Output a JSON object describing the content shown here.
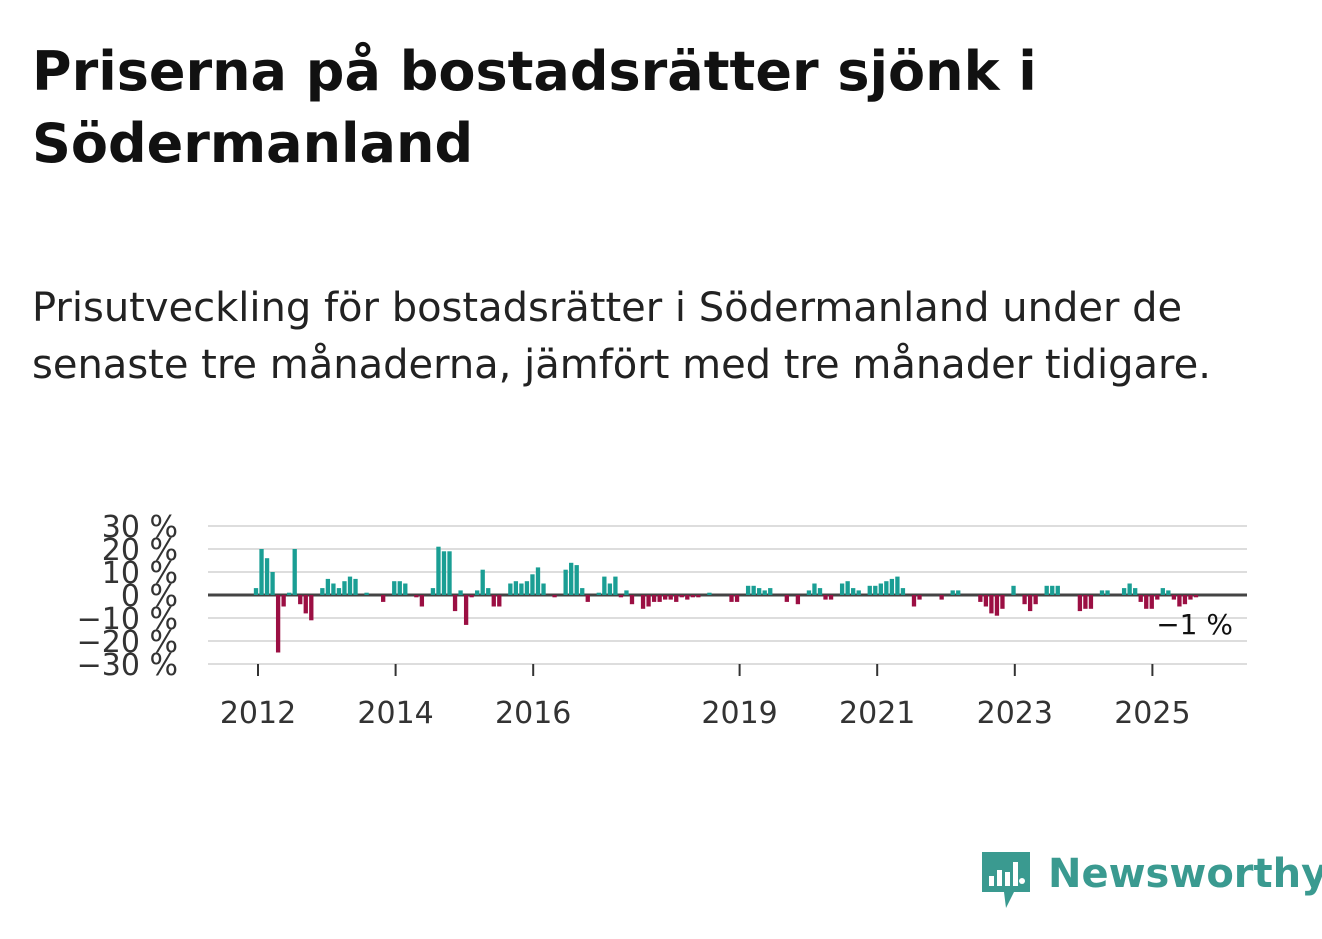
{
  "title": "Priserna på bostadsrätter sjönk i Södermanland",
  "subtitle": "Prisutveckling för bostadsrätter i Södermanland under de senaste tre månaderna, jämfört med tre månader tidigare.",
  "logo_text": "Newsworthy",
  "colors": {
    "positive": "#1a9e94",
    "negative": "#9b0f43",
    "grid": "#dddddd",
    "zero_line": "#444444"
  },
  "chart_data": {
    "type": "bar",
    "title": "",
    "xlabel": "",
    "ylabel": "",
    "ylim": [
      -30,
      30
    ],
    "y_ticks": [
      30,
      20,
      10,
      0,
      -10,
      -20,
      -30
    ],
    "y_tick_labels": [
      "30 %",
      "20 %",
      "10 %",
      "0 %",
      "−10 %",
      "−20 %",
      "−30 %"
    ],
    "x_ticks": [
      2012,
      2014,
      2016,
      2019,
      2021,
      2023,
      2025
    ],
    "x_tick_labels": [
      "2012",
      "2014",
      "2016",
      "2019",
      "2021",
      "2023",
      "2025"
    ],
    "x_start": 2011.75,
    "x_end": 2025.75,
    "last_value_label": "−1 %",
    "values": [
      3,
      20,
      16,
      10,
      -25,
      -5,
      1,
      20,
      -4,
      -8,
      -11,
      0,
      3,
      7,
      5,
      3,
      6,
      8,
      7,
      0,
      1,
      0,
      0,
      -3,
      0,
      6,
      6,
      5,
      0,
      -1,
      -5,
      0,
      3,
      21,
      19,
      19,
      -7,
      2,
      -13,
      -1,
      2,
      11,
      3,
      -5,
      -5,
      0,
      5,
      6,
      5,
      6,
      9,
      12,
      5,
      0,
      -1,
      0,
      11,
      14,
      13,
      3,
      -3,
      0,
      1,
      8,
      5,
      8,
      -1,
      2,
      -4,
      0,
      -6,
      -5,
      -3,
      -3,
      -2,
      -2,
      -3,
      -1,
      -2,
      -1,
      -1,
      0,
      1,
      0,
      0,
      0,
      -3,
      -3,
      0,
      4,
      4,
      3,
      2,
      3,
      0,
      0,
      -3,
      0,
      -4,
      0,
      2,
      5,
      3,
      -2,
      -2,
      0,
      5,
      6,
      3,
      2,
      0,
      4,
      4,
      5,
      6,
      7,
      8,
      3,
      0,
      -5,
      -2,
      0,
      0,
      0,
      -2,
      0,
      2,
      2,
      0,
      0,
      0,
      -3,
      -5,
      -8,
      -9,
      -6,
      0,
      4,
      0,
      -4,
      -7,
      -4,
      0,
      4,
      4,
      4,
      0,
      0,
      0,
      -7,
      -6,
      -6,
      0,
      2,
      2,
      0,
      0,
      3,
      5,
      3,
      -3,
      -6,
      -6,
      -2,
      3,
      2,
      -2,
      -5,
      -4,
      -2,
      -1
    ]
  }
}
